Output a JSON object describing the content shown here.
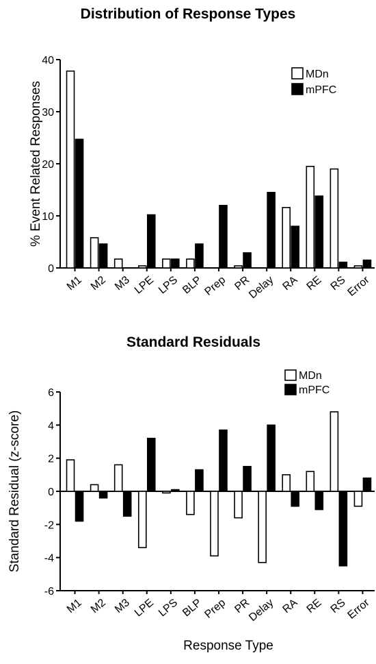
{
  "chart_data": [
    {
      "type": "bar",
      "title": "Distribution of Response Types",
      "xlabel": "",
      "ylabel": "%  Event Related Responses",
      "ylim": [
        0,
        40
      ],
      "yticks": [
        "0",
        "10",
        "20",
        "30",
        "40"
      ],
      "categories": [
        "M1",
        "M2",
        "M3",
        "LPE",
        "LPS",
        "BLP",
        "Prep",
        "PR",
        "Delay",
        "RA",
        "RE",
        "RS",
        "Error"
      ],
      "series": [
        {
          "name": "MDn",
          "color": "#ffffff",
          "values": [
            37.8,
            5.8,
            1.7,
            0.4,
            1.7,
            1.7,
            0.0,
            0.4,
            0.0,
            11.6,
            19.5,
            19.0,
            0.4
          ]
        },
        {
          "name": "mPFC",
          "color": "#000000",
          "values": [
            24.7,
            4.6,
            0.0,
            10.2,
            1.7,
            4.6,
            12.0,
            2.9,
            14.5,
            8.0,
            13.8,
            1.1,
            1.5
          ]
        }
      ],
      "legend": "top-right",
      "grid": false
    },
    {
      "type": "bar",
      "title": "Standard Residuals",
      "xlabel": "Response Type",
      "ylabel": "Standard Residual (z-score)",
      "ylim": [
        -6,
        6
      ],
      "yticks": [
        "-6",
        "-4",
        "-2",
        "0",
        "2",
        "4",
        "6"
      ],
      "categories": [
        "M1",
        "M2",
        "M3",
        "LPE",
        "LPS",
        "BLP",
        "Prep",
        "PR",
        "Delay",
        "RA",
        "RE",
        "RS",
        "Error"
      ],
      "series": [
        {
          "name": "MDn",
          "color": "#ffffff",
          "values": [
            1.9,
            0.4,
            1.6,
            -3.4,
            -0.1,
            -1.4,
            -3.9,
            -1.6,
            -4.3,
            1.0,
            1.2,
            4.8,
            -0.9
          ]
        },
        {
          "name": "mPFC",
          "color": "#000000",
          "values": [
            -1.8,
            -0.4,
            -1.5,
            3.2,
            0.1,
            1.3,
            3.7,
            1.5,
            4.0,
            -0.9,
            -1.1,
            -4.5,
            0.8
          ]
        }
      ],
      "legend": "top-right",
      "grid": false
    }
  ]
}
